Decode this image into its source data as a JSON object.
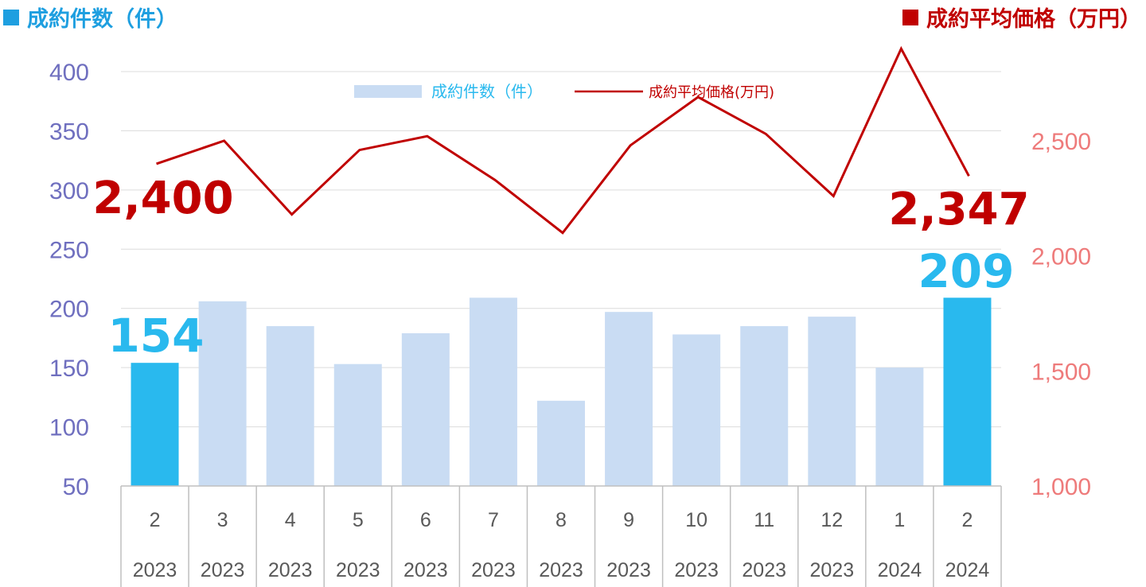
{
  "header": {
    "left_title": "成約件数（件）",
    "right_title": "成約平均価格（万円）"
  },
  "colors": {
    "bar": "#c9dcf3",
    "bar_highlight": "#29b9ee",
    "line": "#c00000",
    "left_axis": "#6f6fbf",
    "right_axis": "#ee7b7b",
    "header_left": "#1e9fe0",
    "header_right": "#c00000"
  },
  "chart_data": {
    "type": "bar+line",
    "categories": [
      "2",
      "3",
      "4",
      "5",
      "6",
      "7",
      "8",
      "9",
      "10",
      "11",
      "12",
      "1",
      "2"
    ],
    "years": [
      "2023",
      "2023",
      "2023",
      "2023",
      "2023",
      "2023",
      "2023",
      "2023",
      "2023",
      "2023",
      "2023",
      "2024",
      "2024"
    ],
    "series": [
      {
        "name": "成約件数（件）",
        "type": "bar",
        "axis": "left",
        "values": [
          154,
          206,
          185,
          153,
          179,
          209,
          122,
          197,
          178,
          185,
          193,
          150,
          209
        ],
        "highlight": [
          true,
          false,
          false,
          false,
          false,
          false,
          false,
          false,
          false,
          false,
          false,
          false,
          true
        ]
      },
      {
        "name": "成約平均価格(万円)",
        "type": "line",
        "axis": "right",
        "values": [
          2400,
          2500,
          2180,
          2460,
          2520,
          2330,
          2100,
          2480,
          2690,
          2530,
          2260,
          2900,
          2347
        ]
      }
    ],
    "left_axis": {
      "ylim": [
        50,
        400
      ],
      "ticks": [
        "50",
        "100",
        "150",
        "200",
        "250",
        "300",
        "350",
        "400"
      ]
    },
    "right_axis": {
      "ylim": [
        1000,
        2500
      ],
      "ticks": [
        "1,000",
        "1,500",
        "2,000",
        "2,500"
      ]
    },
    "callouts": {
      "bar_first": "154",
      "bar_last": "209",
      "line_first": "2,400",
      "line_last": "2,347"
    },
    "legend": {
      "position": "top-center",
      "bar_label": "成約件数（件）",
      "line_label": "成約平均価格(万円)"
    },
    "grid": true
  }
}
